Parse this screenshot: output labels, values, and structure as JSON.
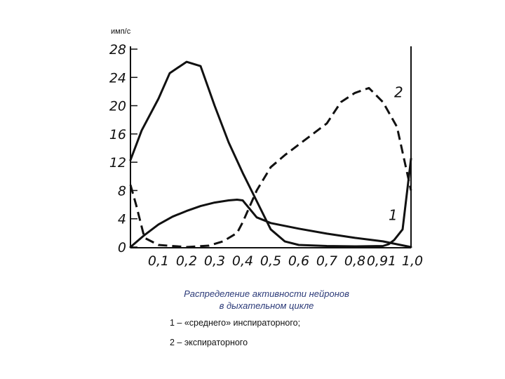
{
  "chart_data": {
    "type": "line",
    "ylabel": "имп/с",
    "y_ticks": [
      "0",
      "4",
      "8",
      "12",
      "16",
      "20",
      "24",
      "28"
    ],
    "x_ticks": [
      "0,1",
      "0,2",
      "0,3",
      "0,4",
      "0,5",
      "0,6",
      "0,7",
      "0,8",
      "0,91",
      "1,0"
    ],
    "xlim": [
      0,
      1.0
    ],
    "ylim": [
      0,
      28
    ],
    "grid": false,
    "series": [
      {
        "name": "1",
        "style": "solid",
        "label_x": 0.92,
        "label_y": 3.8,
        "x": [
          0,
          0.04,
          0.1,
          0.14,
          0.2,
          0.25,
          0.3,
          0.35,
          0.4,
          0.45,
          0.5,
          0.55,
          0.6,
          0.7,
          0.8,
          0.9,
          0.92,
          0.94,
          0.97,
          1.0
        ],
        "y": [
          12.3,
          16.5,
          21,
          24.6,
          26.2,
          25.6,
          20,
          14.8,
          10.5,
          6.5,
          2.5,
          0.8,
          0.3,
          0.15,
          0.1,
          0.15,
          0.4,
          1,
          2.5,
          12.5
        ]
      },
      {
        "name": "1",
        "style": "solid",
        "x": [
          0,
          0.05,
          0.1,
          0.15,
          0.2,
          0.25,
          0.3,
          0.35,
          0.38,
          0.4,
          0.45,
          0.5,
          0.6,
          0.7,
          0.8,
          0.9,
          0.95,
          1.0
        ],
        "y": [
          0,
          1.7,
          3.2,
          4.3,
          5.1,
          5.8,
          6.3,
          6.6,
          6.7,
          6.6,
          4.2,
          3.4,
          2.6,
          1.9,
          1.3,
          0.8,
          0.4,
          0
        ]
      },
      {
        "name": "2",
        "style": "dashed",
        "label_x": 0.94,
        "label_y": 21.2,
        "x": [
          0,
          0.02,
          0.05,
          0.1,
          0.2,
          0.28,
          0.33,
          0.38,
          0.4,
          0.45,
          0.5,
          0.55,
          0.6,
          0.7,
          0.75,
          0.8,
          0.85,
          0.9,
          0.95,
          1.0
        ],
        "y": [
          8.8,
          6,
          1.3,
          0.3,
          0,
          0.2,
          0.8,
          2,
          3.5,
          8,
          11.3,
          13,
          14.5,
          17.5,
          20.5,
          21.8,
          22.5,
          20.5,
          17,
          8
        ]
      }
    ]
  },
  "caption": {
    "line1": "Распределение активности нейронов",
    "line2": "в дыхательном цикле"
  },
  "legend": {
    "item1": "1 – «среднего» инспираторного;",
    "item2": "2 – экспираторного"
  }
}
